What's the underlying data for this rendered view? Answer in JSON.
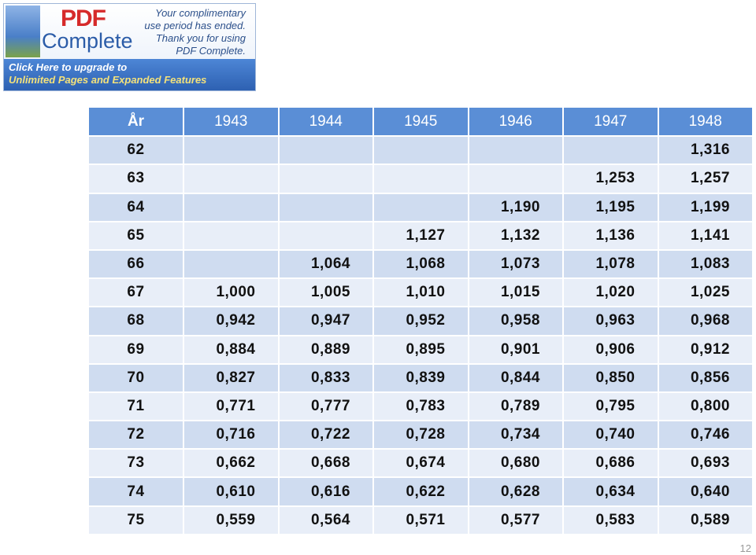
{
  "banner": {
    "logo_top": "PDF",
    "logo_bottom": "Complete",
    "notice": [
      "Your complimentary",
      "use period has ended.",
      "Thank you for using",
      "PDF Complete."
    ],
    "upgrade": [
      "Click Here to upgrade to",
      "Unlimited Pages and Expanded Features"
    ]
  },
  "table": {
    "header": [
      "År",
      "1943",
      "1944",
      "1945",
      "1946",
      "1947",
      "1948"
    ],
    "rows": [
      [
        "62",
        null,
        null,
        null,
        null,
        null,
        "1,316"
      ],
      [
        "63",
        null,
        null,
        null,
        null,
        "1,253",
        "1,257"
      ],
      [
        "64",
        null,
        null,
        null,
        "1,190",
        "1,195",
        "1,199"
      ],
      [
        "65",
        null,
        null,
        "1,127",
        "1,132",
        "1,136",
        "1,141"
      ],
      [
        "66",
        null,
        "1,064",
        "1,068",
        "1,073",
        "1,078",
        "1,083"
      ],
      [
        "67",
        "1,000",
        "1,005",
        "1,010",
        "1,015",
        "1,020",
        "1,025"
      ],
      [
        "68",
        "0,942",
        "0,947",
        "0,952",
        "0,958",
        "0,963",
        "0,968"
      ],
      [
        "69",
        "0,884",
        "0,889",
        "0,895",
        "0,901",
        "0,906",
        "0,912"
      ],
      [
        "70",
        "0,827",
        "0,833",
        "0,839",
        "0,844",
        "0,850",
        "0,856"
      ],
      [
        "71",
        "0,771",
        "0,777",
        "0,783",
        "0,789",
        "0,795",
        "0,800"
      ],
      [
        "72",
        "0,716",
        "0,722",
        "0,728",
        "0,734",
        "0,740",
        "0,746"
      ],
      [
        "73",
        "0,662",
        "0,668",
        "0,674",
        "0,680",
        "0,686",
        "0,693"
      ],
      [
        "74",
        "0,610",
        "0,616",
        "0,622",
        "0,628",
        "0,634",
        "0,640"
      ],
      [
        "75",
        "0,559",
        "0,564",
        "0,571",
        "0,577",
        "0,583",
        "0,589"
      ]
    ]
  },
  "page_number": "12"
}
